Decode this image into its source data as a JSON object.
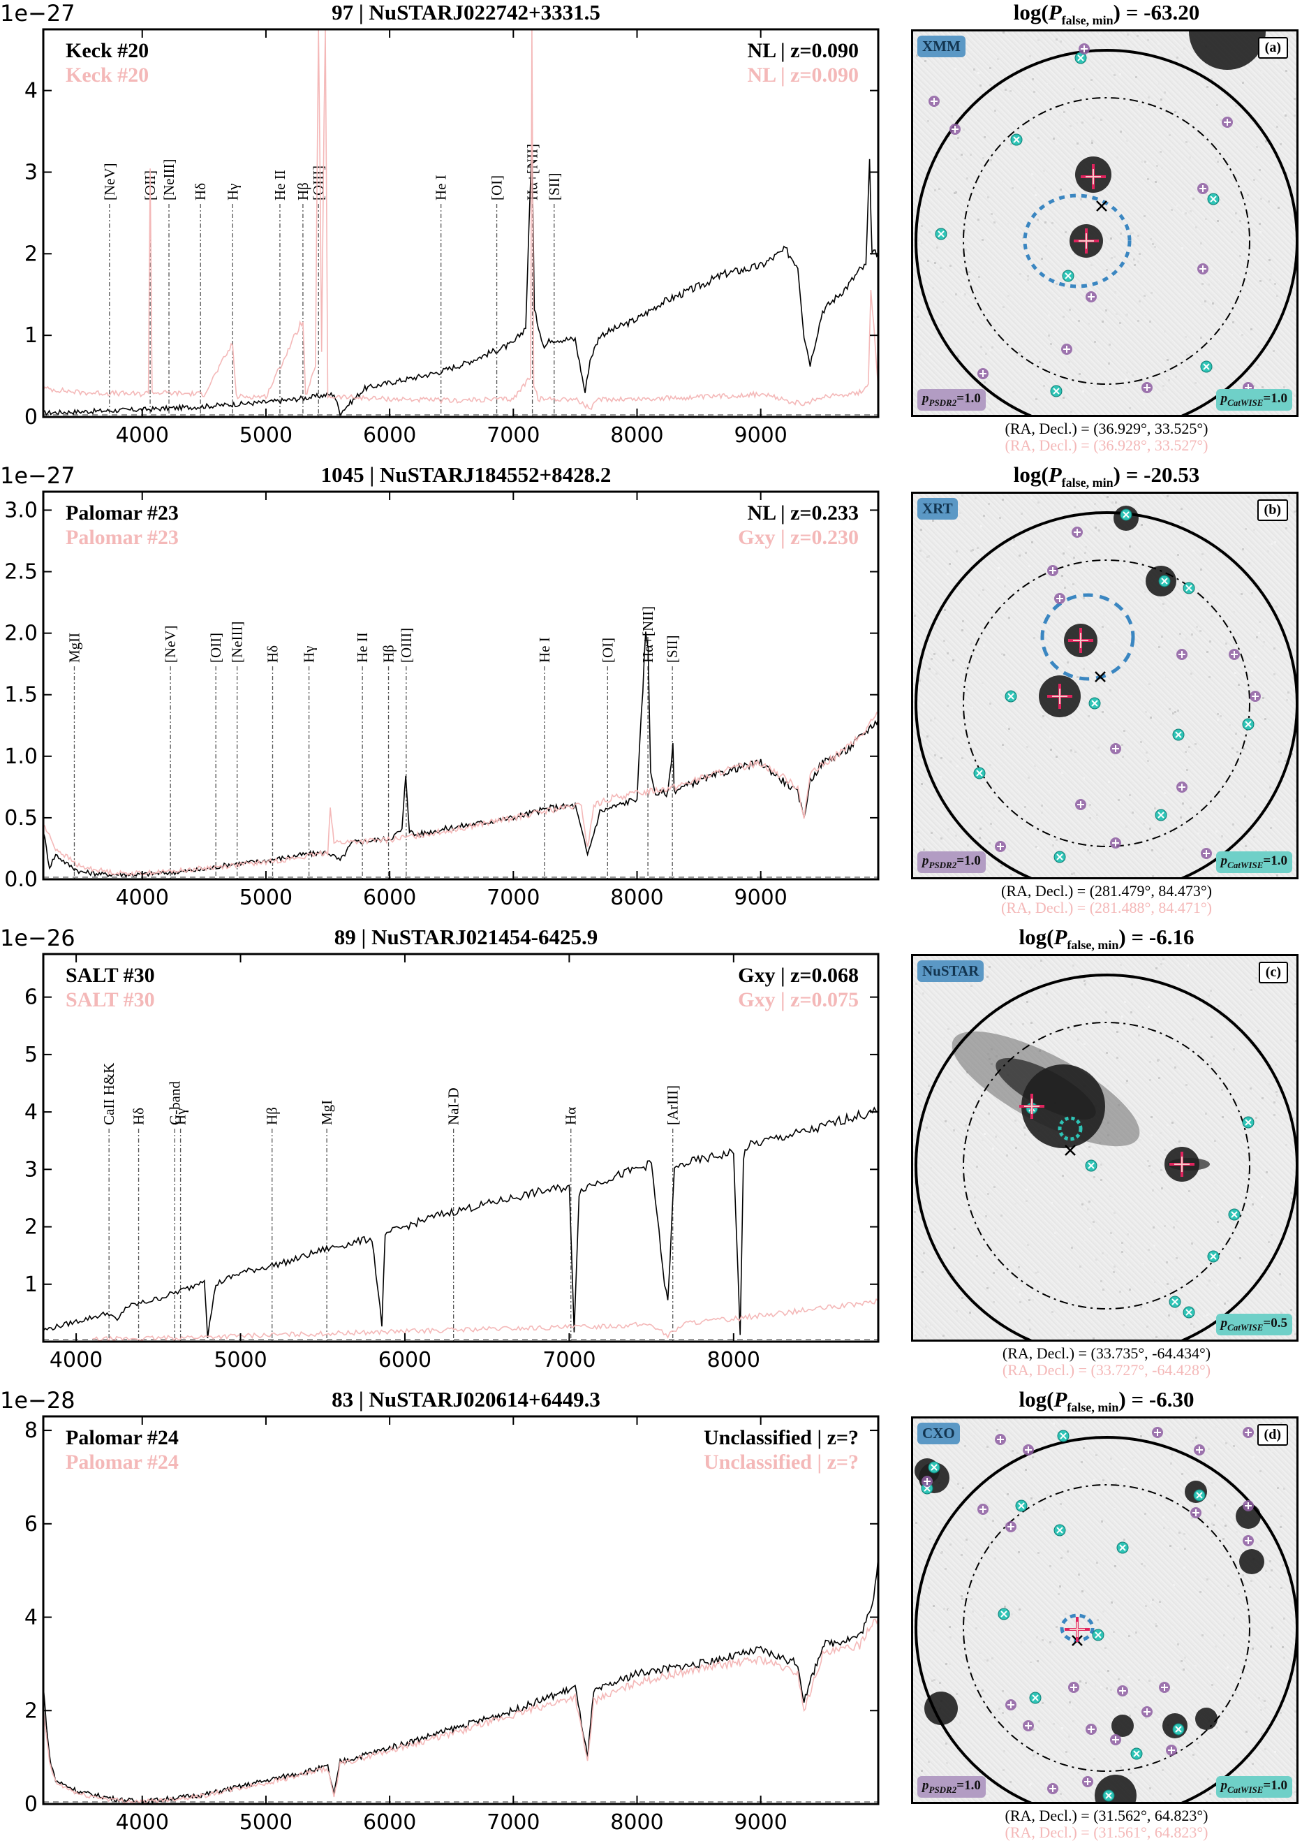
{
  "colors": {
    "spec1": "#000000",
    "spec2": "#f4b8b8",
    "lines": "#555555",
    "xray": "#3a86c1",
    "catwise": "#2ec4b6",
    "psdr2": "#8e5ea2",
    "opt_match": "#e0245e"
  },
  "chart_data": [
    {
      "type": "line",
      "id": "a",
      "title": "97 | NuSTARJ022742+3331.5",
      "sci_label": "1e−27",
      "xlim": [
        3200,
        9950
      ],
      "ylim": [
        0,
        4.75
      ],
      "xticks": [
        4000,
        5000,
        6000,
        7000,
        8000,
        9000
      ],
      "yticks": [
        0,
        1,
        2,
        3,
        4
      ],
      "legend": {
        "left_black": "Keck #20",
        "left_pink": "Keck #20",
        "right_black": "NL | z=0.090",
        "right_pink": "NL | z=0.090"
      },
      "line_labels": [
        {
          "label": "[NeV]",
          "x": 3735
        },
        {
          "label": "[OII]",
          "x": 4064
        },
        {
          "label": "[NeIII]",
          "x": 4216
        },
        {
          "label": "Hδ",
          "x": 4471
        },
        {
          "label": "Hγ",
          "x": 4731
        },
        {
          "label": "He II",
          "x": 5113
        },
        {
          "label": "Hβ",
          "x": 5299
        },
        {
          "label": "[OIII]",
          "x": 5425
        },
        {
          "label": "He I",
          "x": 6415
        },
        {
          "label": "[OI]",
          "x": 6866
        },
        {
          "label": "Hα+[NII]",
          "x": 7154
        },
        {
          "label": "[SII]",
          "x": 7330
        }
      ],
      "series": [
        {
          "name": "Keck #20",
          "color": "black",
          "x": [
            3200,
            3600,
            4000,
            4400,
            4800,
            5000,
            5200,
            5400,
            5550,
            5600,
            5800,
            6000,
            6200,
            6400,
            6600,
            6800,
            7000,
            7100,
            7150,
            7170,
            7250,
            7300,
            7500,
            7580,
            7620,
            7700,
            8000,
            8200,
            8500,
            8700,
            9000,
            9100,
            9200,
            9300,
            9350,
            9400,
            9500,
            9700,
            9800,
            9850,
            9880,
            9900,
            9950
          ],
          "y": [
            0.05,
            0.07,
            0.09,
            0.12,
            0.16,
            0.18,
            0.21,
            0.25,
            0.28,
            0.05,
            0.35,
            0.42,
            0.48,
            0.55,
            0.65,
            0.78,
            0.9,
            1.1,
            3.4,
            1.3,
            0.85,
            0.95,
            0.95,
            0.3,
            0.7,
            1.0,
            1.2,
            1.4,
            1.6,
            1.75,
            1.85,
            1.95,
            2.05,
            1.85,
            1.0,
            0.65,
            1.3,
            1.6,
            1.8,
            1.85,
            3.1,
            2.0,
            2.0
          ]
        },
        {
          "name": "Keck #20",
          "color": "pink",
          "x": [
            3200,
            3500,
            4000,
            4050,
            4064,
            4080,
            4500,
            4731,
            4760,
            5000,
            5299,
            5320,
            5400,
            5425,
            5450,
            5480,
            5500,
            6000,
            6500,
            7000,
            7140,
            7150,
            7165,
            7200,
            7500,
            7620,
            7700,
            8000,
            8500,
            9000,
            9350,
            9500,
            9800,
            9870,
            9890,
            9950
          ],
          "y": [
            0.35,
            0.3,
            0.28,
            0.3,
            3.1,
            0.3,
            0.28,
            0.9,
            0.25,
            0.25,
            1.2,
            0.25,
            0.6,
            5.0,
            0.8,
            5.0,
            0.25,
            0.22,
            0.2,
            0.22,
            0.5,
            5.0,
            0.4,
            0.22,
            0.22,
            0.1,
            0.22,
            0.22,
            0.24,
            0.28,
            0.15,
            0.25,
            0.3,
            0.4,
            1.6,
            0.35
          ]
        }
      ],
      "imaging": {
        "title": "log(P_false,min) = -63.20",
        "telescope": "XMM",
        "panel_letter": "(a)",
        "p_psdr2": "1.0",
        "p_catwise": "1.0",
        "radec_black": "(RA, Decl.) = (36.929°, 33.525°)",
        "radec_pink": "(RA, Decl.) = (36.928°, 33.527°)"
      }
    },
    {
      "type": "line",
      "id": "b",
      "title": "1045 | NuSTARJ184552+8428.2",
      "sci_label": "1e−27",
      "xlim": [
        3200,
        9950
      ],
      "ylim": [
        0,
        3.15
      ],
      "xticks": [
        4000,
        5000,
        6000,
        7000,
        8000,
        9000
      ],
      "yticks": [
        0.0,
        0.5,
        1.0,
        1.5,
        2.0,
        2.5,
        3.0
      ],
      "legend": {
        "left_black": "Palomar #23",
        "left_pink": "Palomar #23",
        "right_black": "NL | z=0.233",
        "right_pink": "Gxy | z=0.230"
      },
      "line_labels": [
        {
          "label": "MgII",
          "x": 3451
        },
        {
          "label": "[NeV]",
          "x": 4228
        },
        {
          "label": "[OII]",
          "x": 4595
        },
        {
          "label": "[NeIII]",
          "x": 4767
        },
        {
          "label": "Hδ",
          "x": 5054
        },
        {
          "label": "Hγ",
          "x": 5348
        },
        {
          "label": "He II",
          "x": 5780
        },
        {
          "label": "Hβ",
          "x": 5991
        },
        {
          "label": "[OIII]",
          "x": 6134
        },
        {
          "label": "He I",
          "x": 7252
        },
        {
          "label": "[OI]",
          "x": 7762
        },
        {
          "label": "Hα+[NII]",
          "x": 8088
        },
        {
          "label": "[SII]",
          "x": 8286
        }
      ],
      "series": [
        {
          "name": "Palomar #23",
          "color": "black",
          "x": [
            3200,
            3250,
            3300,
            3400,
            3500,
            3700,
            4000,
            4300,
            4500,
            4600,
            4700,
            5000,
            5300,
            5500,
            5600,
            5700,
            6000,
            6100,
            6130,
            6160,
            6200,
            6500,
            7000,
            7300,
            7500,
            7600,
            7700,
            7900,
            8000,
            8070,
            8090,
            8110,
            8150,
            8250,
            8290,
            8300,
            8500,
            8800,
            9000,
            9300,
            9350,
            9400,
            9500,
            9700,
            9900,
            9950
          ],
          "y": [
            0.4,
            0.1,
            0.2,
            0.12,
            0.06,
            0.04,
            0.04,
            0.06,
            0.08,
            0.1,
            0.12,
            0.15,
            0.2,
            0.22,
            0.15,
            0.3,
            0.33,
            0.4,
            0.85,
            0.4,
            0.36,
            0.42,
            0.5,
            0.58,
            0.6,
            0.2,
            0.55,
            0.62,
            0.66,
            2.0,
            1.9,
            0.85,
            0.7,
            0.7,
            1.1,
            0.72,
            0.8,
            0.9,
            0.95,
            0.7,
            0.5,
            0.8,
            0.95,
            1.05,
            1.25,
            1.3
          ]
        },
        {
          "name": "Palomar #23",
          "color": "pink",
          "x": [
            3200,
            3300,
            3500,
            3800,
            4000,
            4300,
            4600,
            5000,
            5300,
            5500,
            5520,
            5550,
            5600,
            6000,
            6500,
            7000,
            7300,
            7550,
            7600,
            7650,
            7800,
            8000,
            8300,
            8700,
            9000,
            9300,
            9350,
            9400,
            9600,
            9800,
            9950
          ],
          "y": [
            0.45,
            0.25,
            0.1,
            0.05,
            0.05,
            0.07,
            0.1,
            0.14,
            0.18,
            0.22,
            0.6,
            0.3,
            0.3,
            0.32,
            0.4,
            0.5,
            0.56,
            0.6,
            0.25,
            0.6,
            0.66,
            0.7,
            0.75,
            0.88,
            0.95,
            0.75,
            0.5,
            0.85,
            1.0,
            1.15,
            1.35
          ]
        }
      ],
      "imaging": {
        "title": "log(P_false,min) = -20.53",
        "telescope": "XRT",
        "panel_letter": "(b)",
        "p_psdr2": "1.0",
        "p_catwise": "1.0",
        "radec_black": "(RA, Decl.) = (281.479°, 84.473°)",
        "radec_pink": "(RA, Decl.) = (281.488°, 84.471°)"
      }
    },
    {
      "type": "line",
      "id": "c",
      "title": "89 | NuSTARJ021454-6425.9",
      "sci_label": "1e−26",
      "xlim": [
        3800,
        8880
      ],
      "ylim": [
        0,
        6.75
      ],
      "xticks": [
        4000,
        5000,
        6000,
        7000,
        8000
      ],
      "yticks": [
        1,
        2,
        3,
        4,
        5,
        6
      ],
      "legend": {
        "left_black": "SALT #30",
        "left_pink": "SALT #30",
        "right_black": "Gxy | z=0.068",
        "right_pink": "Gxy | z=0.075"
      },
      "line_labels": [
        {
          "label": "CaII H&K",
          "x": 4200
        },
        {
          "label": "Hδ",
          "x": 4380
        },
        {
          "label": "G-band",
          "x": 4600
        },
        {
          "label": "Hγ",
          "x": 4635
        },
        {
          "label": "Hβ",
          "x": 5192
        },
        {
          "label": "MgI",
          "x": 5525
        },
        {
          "label": "NaI-D",
          "x": 6296
        },
        {
          "label": "Hα",
          "x": 7010
        },
        {
          "label": "[ArIII]",
          "x": 7630
        }
      ],
      "series": [
        {
          "name": "SALT #30",
          "color": "black",
          "x": [
            3800,
            4000,
            4200,
            4250,
            4300,
            4500,
            4700,
            4780,
            4800,
            4850,
            5000,
            5300,
            5500,
            5800,
            5860,
            5880,
            5900,
            6000,
            6200,
            6500,
            6800,
            7000,
            7030,
            7060,
            7100,
            7300,
            7500,
            7580,
            7600,
            7640,
            7700,
            8000,
            8040,
            8060,
            8080,
            8200,
            8500,
            8700,
            8880
          ],
          "y": [
            0.2,
            0.35,
            0.5,
            0.35,
            0.6,
            0.75,
            0.95,
            1.1,
            0.1,
            1.0,
            1.2,
            1.4,
            1.6,
            1.8,
            0.3,
            1.8,
            1.9,
            2.0,
            2.2,
            2.4,
            2.6,
            2.7,
            0.2,
            2.6,
            2.7,
            2.9,
            3.1,
            1.0,
            0.7,
            3.0,
            3.1,
            3.3,
            0.1,
            3.2,
            3.4,
            3.5,
            3.7,
            3.9,
            4.0
          ]
        },
        {
          "name": "SALT #30",
          "color": "pink",
          "x": [
            4100,
            4500,
            5000,
            5500,
            6000,
            6500,
            7000,
            7500,
            7600,
            7700,
            8000,
            8300,
            8600,
            8880
          ],
          "y": [
            0.04,
            0.06,
            0.1,
            0.14,
            0.18,
            0.22,
            0.25,
            0.3,
            0.1,
            0.32,
            0.4,
            0.5,
            0.6,
            0.7
          ]
        }
      ],
      "imaging": {
        "title": "log(P_false,min) = -6.16",
        "telescope": "NuSTAR",
        "panel_letter": "(c)",
        "p_psdr2": "",
        "p_catwise": "0.5",
        "radec_black": "(RA, Decl.) = (33.735°, -64.434°)",
        "radec_pink": "(RA, Decl.) = (33.727°, -64.428°)"
      }
    },
    {
      "type": "line",
      "id": "d",
      "title": "83 | NuSTARJ020614+6449.3",
      "sci_label": "1e−28",
      "xlim": [
        3200,
        9950
      ],
      "ylim": [
        0,
        8.3
      ],
      "xticks": [
        4000,
        5000,
        6000,
        7000,
        8000,
        9000
      ],
      "yticks": [
        0,
        2,
        4,
        6,
        8
      ],
      "legend": {
        "left_black": "Palomar #24",
        "left_pink": "Palomar #24",
        "right_black": "Unclassified | z=?",
        "right_pink": "Unclassified | z=?"
      },
      "line_labels": [],
      "series": [
        {
          "name": "Palomar #24",
          "color": "black",
          "x": [
            3200,
            3250,
            3300,
            3500,
            3800,
            4000,
            4500,
            5000,
            5500,
            5550,
            5600,
            6000,
            6500,
            7000,
            7500,
            7600,
            7650,
            8000,
            8500,
            9000,
            9300,
            9350,
            9500,
            9800,
            9900,
            9950
          ],
          "y": [
            2.5,
            1.0,
            0.5,
            0.25,
            0.1,
            0.05,
            0.2,
            0.5,
            0.8,
            0.2,
            0.9,
            1.2,
            1.6,
            2.0,
            2.5,
            1.0,
            2.4,
            2.8,
            3.0,
            3.3,
            3.0,
            2.2,
            3.4,
            3.6,
            4.2,
            5.3
          ]
        },
        {
          "name": "Palomar #24",
          "color": "pink",
          "x": [
            3200,
            3250,
            3300,
            3500,
            3800,
            4000,
            4500,
            5000,
            5500,
            5550,
            5600,
            6000,
            6500,
            7000,
            7500,
            7600,
            7650,
            8000,
            8500,
            9000,
            9300,
            9350,
            9500,
            9800,
            9900,
            9950
          ],
          "y": [
            2.0,
            0.9,
            0.45,
            0.2,
            0.08,
            0.04,
            0.18,
            0.45,
            0.75,
            0.15,
            0.85,
            1.15,
            1.5,
            1.9,
            2.3,
            0.9,
            2.2,
            2.6,
            2.9,
            3.1,
            2.8,
            2.0,
            3.2,
            3.4,
            3.9,
            4.0
          ]
        }
      ],
      "imaging": {
        "title": "log(P_false,min) = -6.30",
        "telescope": "CXO",
        "panel_letter": "(d)",
        "p_psdr2": "1.0",
        "p_catwise": "1.0",
        "radec_black": "(RA, Decl.) = (31.562°, 64.823°)",
        "radec_pink": "(RA, Decl.) = (31.561°, 64.823°)"
      }
    }
  ]
}
